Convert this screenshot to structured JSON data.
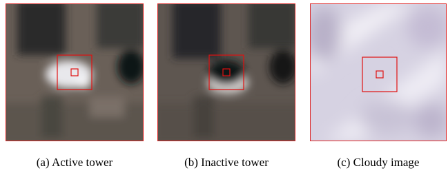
{
  "figure": {
    "panels": [
      {
        "caption": "(a) Active tower"
      },
      {
        "caption": "(b) Inactive tower"
      },
      {
        "caption": "(c) Cloudy image"
      }
    ]
  }
}
